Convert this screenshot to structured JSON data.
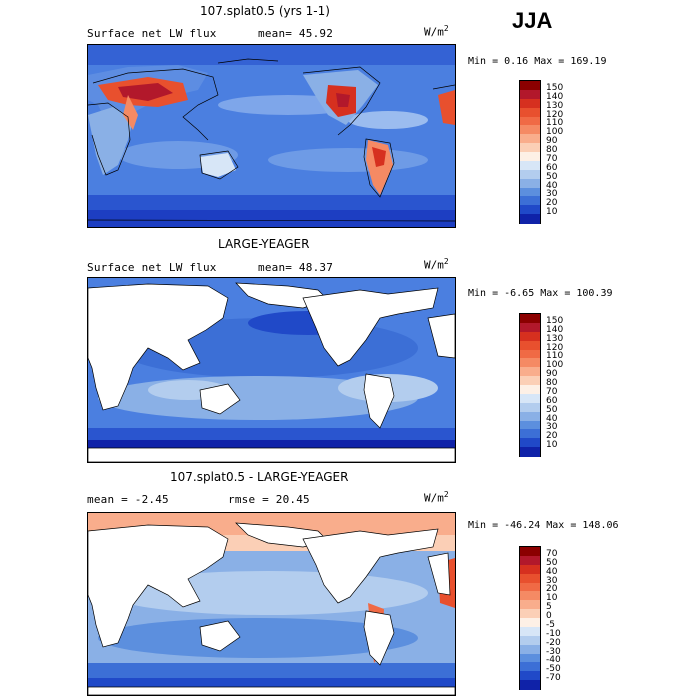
{
  "season": "JJA",
  "panels": [
    {
      "title": "107.splat0.5 (yrs 1-1)",
      "subtitle_left": "Surface net LW flux",
      "subtitle_mean": "mean=  45.92",
      "units": "W/m",
      "units_exp": "2",
      "minmax": "Min =   0.16 Max = 169.19",
      "colorbar_labels": [
        "150",
        "140",
        "130",
        "120",
        "110",
        "100",
        "90",
        "80",
        "70",
        "60",
        "50",
        "40",
        "30",
        "20",
        "10"
      ],
      "colorbar_colors": [
        "#8b0000",
        "#b2182b",
        "#d6301f",
        "#e8502e",
        "#f06a45",
        "#f58a64",
        "#f9ad8c",
        "#fbcfb6",
        "#fdf0e6",
        "#d7e6f7",
        "#b3cdee",
        "#8ab0e6",
        "#5c8fde",
        "#3c6fd6",
        "#2049c8",
        "#0f22a8"
      ]
    },
    {
      "title": "LARGE-YEAGER",
      "subtitle_left": "Surface net LW flux",
      "subtitle_mean": "mean=  48.37",
      "units": "W/m",
      "units_exp": "2",
      "minmax": "Min =  -6.65 Max = 100.39",
      "colorbar_labels": [
        "150",
        "140",
        "130",
        "120",
        "110",
        "100",
        "90",
        "80",
        "70",
        "60",
        "50",
        "40",
        "30",
        "20",
        "10"
      ],
      "colorbar_colors": [
        "#8b0000",
        "#b2182b",
        "#d6301f",
        "#e8502e",
        "#f06a45",
        "#f58a64",
        "#f9ad8c",
        "#fbcfb6",
        "#fdf0e6",
        "#d7e6f7",
        "#b3cdee",
        "#8ab0e6",
        "#5c8fde",
        "#3c6fd6",
        "#2049c8",
        "#0f22a8"
      ]
    },
    {
      "title": "107.splat0.5 - LARGE-YEAGER",
      "subtitle_left": "mean =  -2.45",
      "subtitle_mean": "rmse =  20.45",
      "units": "W/m",
      "units_exp": "2",
      "minmax": "Min = -46.24 Max = 148.06",
      "colorbar_labels": [
        "70",
        "50",
        "40",
        "30",
        "20",
        "10",
        "5",
        "0",
        "-5",
        "-10",
        "-20",
        "-30",
        "-40",
        "-50",
        "-70"
      ],
      "colorbar_colors": [
        "#8b0000",
        "#b2182b",
        "#d6301f",
        "#e8502e",
        "#f06a45",
        "#f58a64",
        "#f9ad8c",
        "#fbcfb6",
        "#fdf0e6",
        "#d7e6f7",
        "#b3cdee",
        "#8ab0e6",
        "#5c8fde",
        "#3c6fd6",
        "#2049c8",
        "#0f22a8"
      ]
    }
  ]
}
